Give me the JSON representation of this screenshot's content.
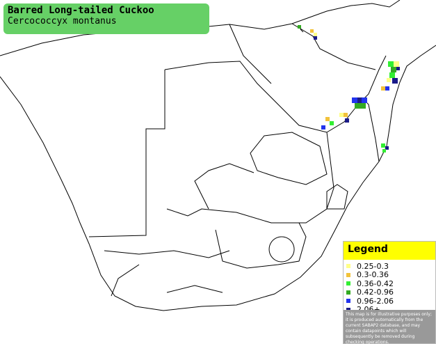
{
  "header": {
    "title": "Barred Long-tailed Cuckoo",
    "subtitle": "Cercococcyx montanus"
  },
  "legend": {
    "title": "Legend",
    "items": [
      {
        "label": "0.25-0.3",
        "color": "#ffff88"
      },
      {
        "label": "0.3-0.36",
        "color": "#f2c23a"
      },
      {
        "label": "0.36-0.42",
        "color": "#33ee33"
      },
      {
        "label": "0.42-0.96",
        "color": "#33aa22"
      },
      {
        "label": "0.96-2.06",
        "color": "#2233ee"
      },
      {
        "label": "2.06+",
        "color": "#1a1a88"
      }
    ]
  },
  "disclaimer": "This map is for illustrative purposes only; it is produced automatically from the current SABAP2 database, and may contain datapoints which will subsequently be removed during checking operations."
}
